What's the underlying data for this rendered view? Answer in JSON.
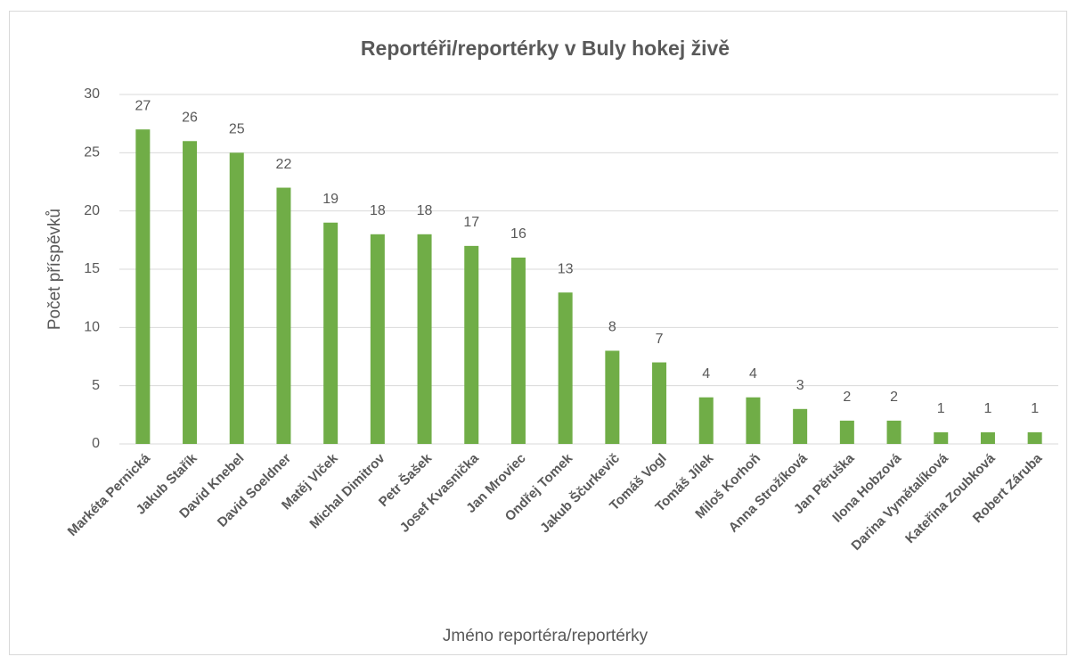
{
  "chart_data": {
    "type": "bar",
    "title": "Reportéři/reportérky v Buly hokej živě",
    "x_label": "Jméno reportéra/reportérky",
    "y_label": "Počet příspěvků",
    "categories": [
      "Markéta Pernická",
      "Jakub Stařík",
      "David Knebel",
      "David Soeldner",
      "Matěj Vlček",
      "Michal Dimitrov",
      "Petr Šašek",
      "Josef Kvasnička",
      "Jan Mroviec",
      "Ondřej Tomek",
      "Jakub Ščurkevič",
      "Tomáš Vogl",
      "Tomáš Jílek",
      "Miloš Korhoň",
      "Anna Strožíková",
      "Jan Pěruška",
      "Ilona Hobzová",
      "Darina Vymětalíková",
      "Kateřina Zoubková",
      "Robert Záruba"
    ],
    "values": [
      27,
      26,
      25,
      22,
      19,
      18,
      18,
      17,
      16,
      13,
      8,
      7,
      4,
      4,
      3,
      2,
      2,
      1,
      1,
      1
    ],
    "color": "#70ad47",
    "ylim": [
      0,
      30
    ],
    "yticks": [
      0,
      5,
      10,
      15,
      20,
      25,
      30
    ],
    "grid": true,
    "data_labels": true
  }
}
